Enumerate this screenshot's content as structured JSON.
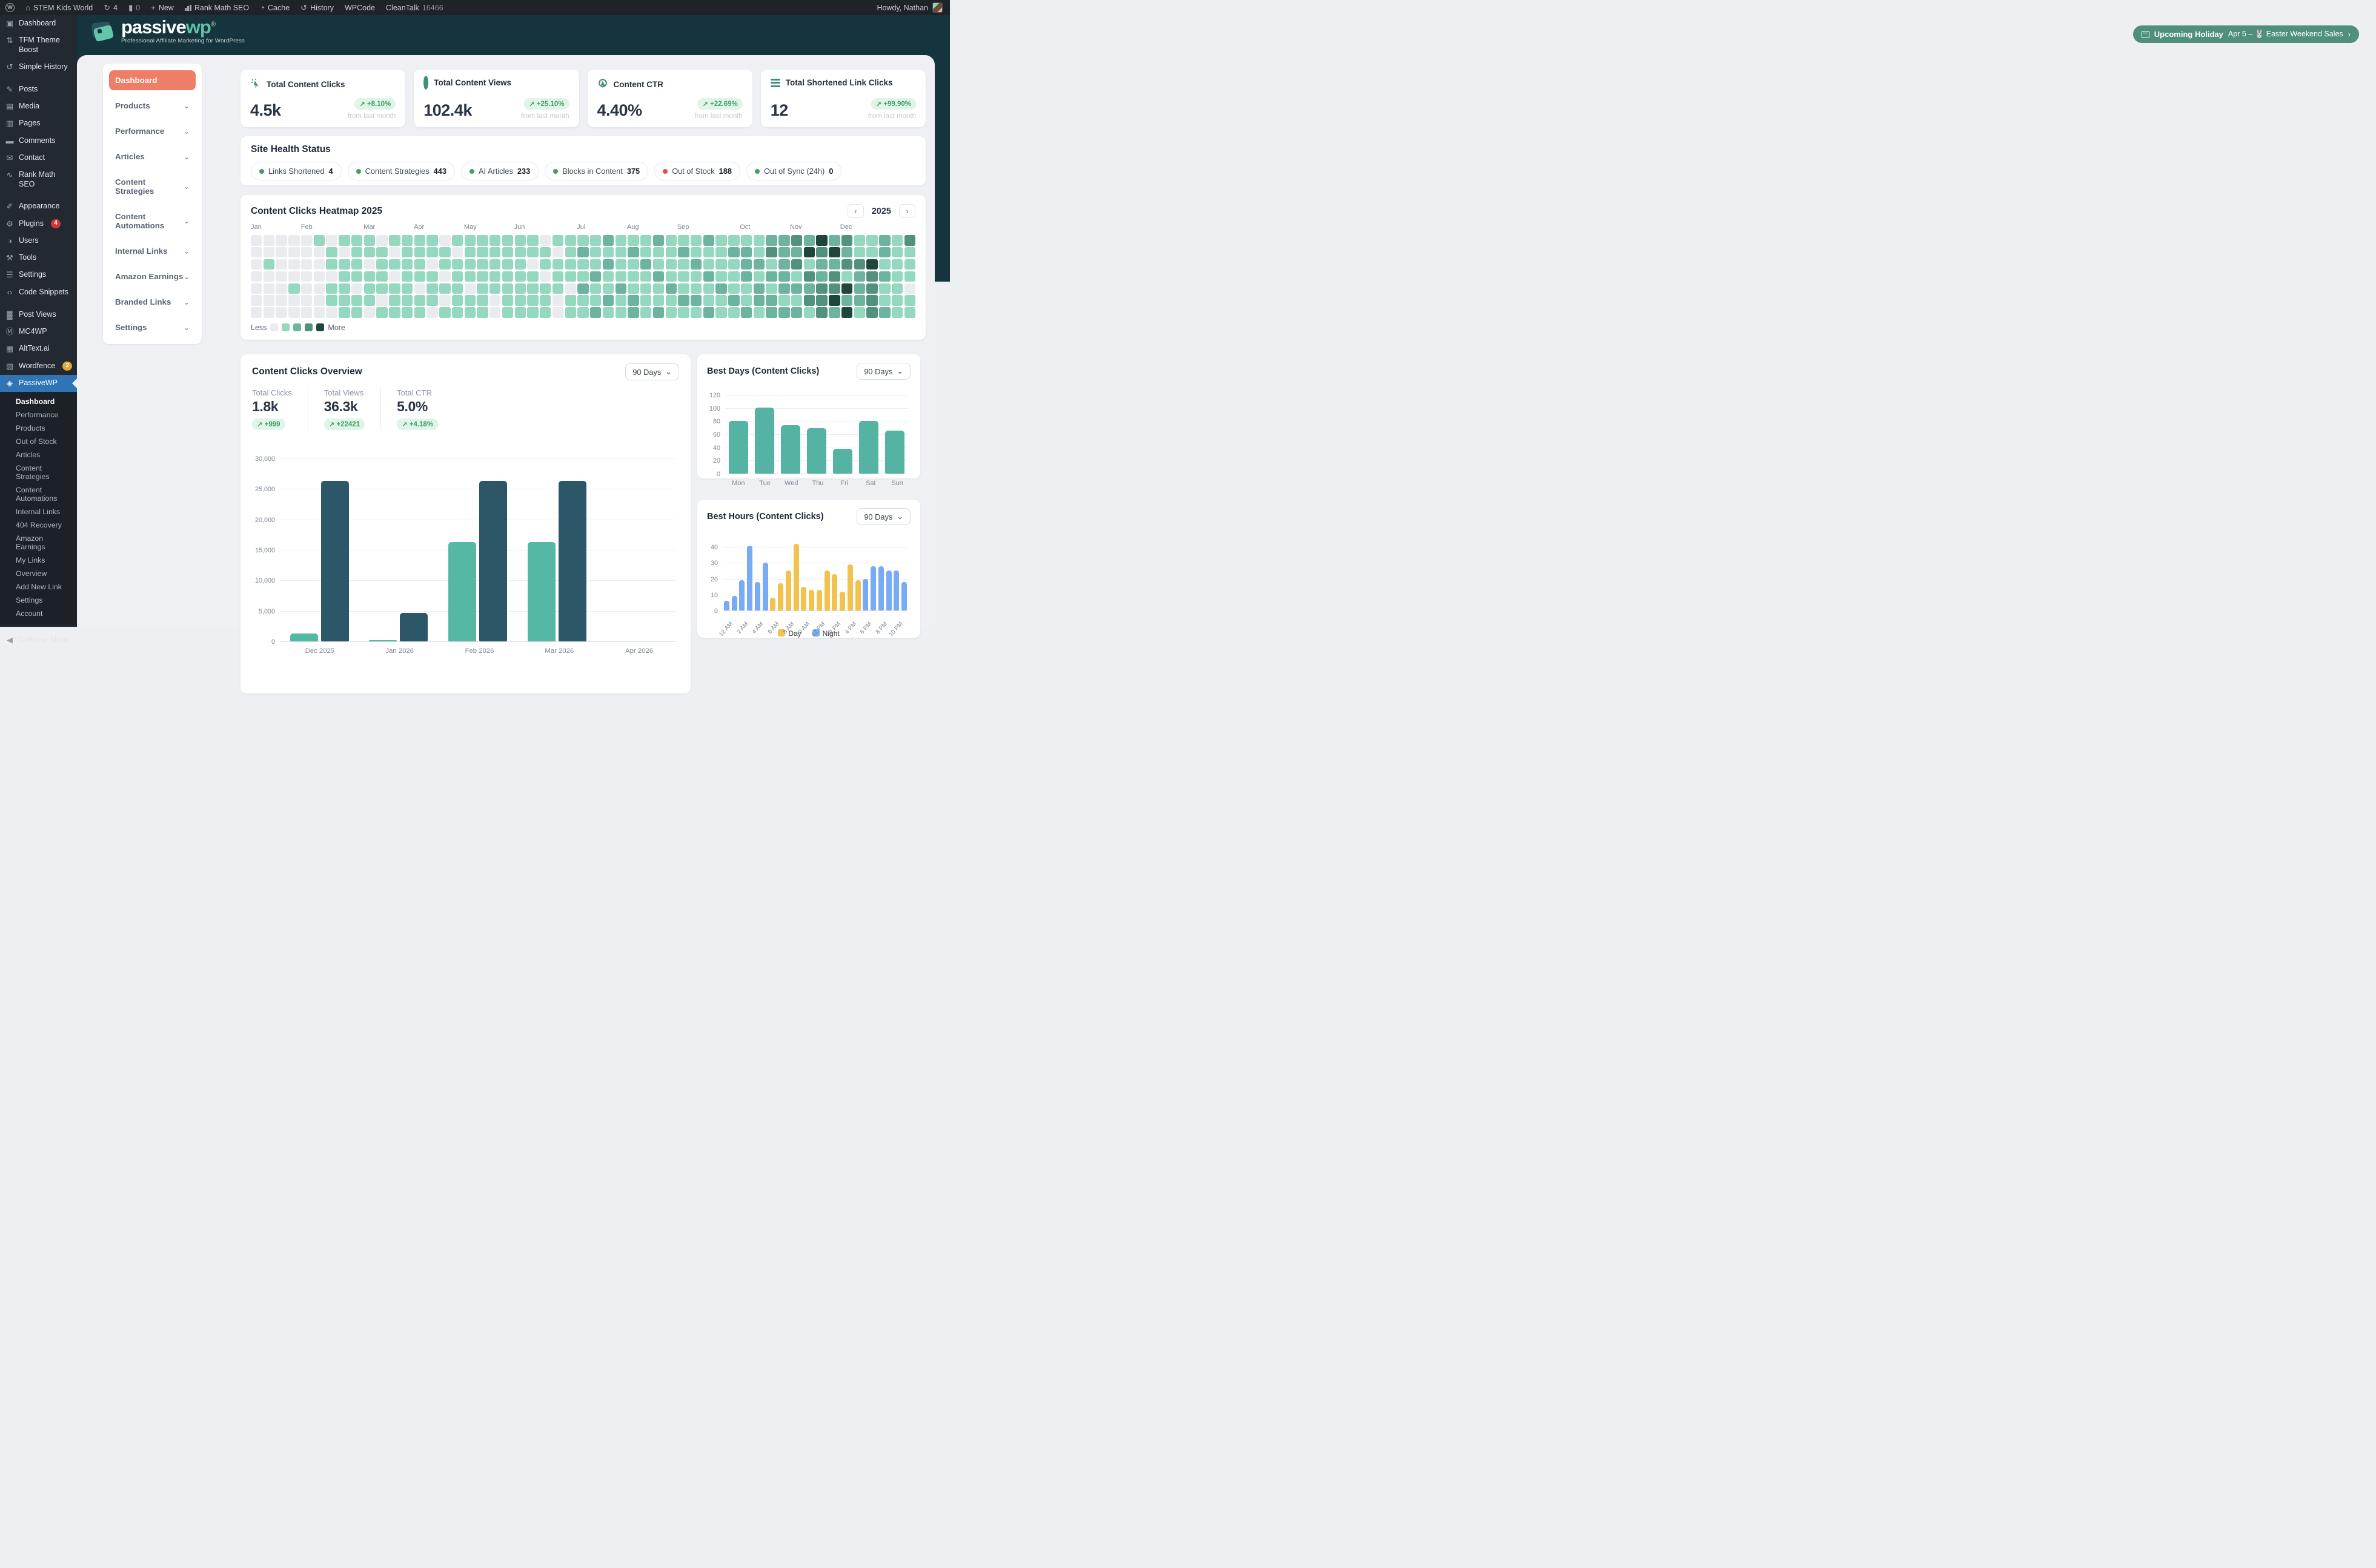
{
  "admin_bar": {
    "site_name": "STEM Kids World",
    "updates_count": "4",
    "comments_count": "0",
    "new_label": "New",
    "rank_math": "Rank Math SEO",
    "cache": "Cache",
    "history": "History",
    "wpcode": "WPCode",
    "cleantalk": "CleanTalk",
    "cleantalk_count": "16466",
    "howdy": "Howdy, Nathan"
  },
  "wp_sidebar": {
    "items": [
      {
        "label": "Dashboard",
        "icon": "dashboard",
        "gap": false
      },
      {
        "label": "TFM Theme Boost",
        "icon": "theme-boost",
        "gap": false
      },
      {
        "label": "Simple History",
        "icon": "history",
        "gap": false
      },
      {
        "label": "Posts",
        "icon": "posts",
        "gap": true
      },
      {
        "label": "Media",
        "icon": "media",
        "gap": false
      },
      {
        "label": "Pages",
        "icon": "pages",
        "gap": false
      },
      {
        "label": "Comments",
        "icon": "comments",
        "gap": false
      },
      {
        "label": "Contact",
        "icon": "contact",
        "gap": false
      },
      {
        "label": "Rank Math SEO",
        "icon": "rank-math",
        "gap": false
      },
      {
        "label": "Appearance",
        "icon": "appearance",
        "gap": true
      },
      {
        "label": "Plugins",
        "icon": "plugins",
        "badge": "4",
        "badge_color": "#d63638",
        "gap": false
      },
      {
        "label": "Users",
        "icon": "users",
        "gap": false
      },
      {
        "label": "Tools",
        "icon": "tools",
        "gap": false
      },
      {
        "label": "Settings",
        "icon": "settings",
        "gap": false
      },
      {
        "label": "Code Snippets",
        "icon": "code-snippets",
        "gap": false
      },
      {
        "label": "Post Views",
        "icon": "post-views",
        "gap": true
      },
      {
        "label": "MC4WP",
        "icon": "mc4wp",
        "gap": false
      },
      {
        "label": "AltText.ai",
        "icon": "alttext",
        "gap": false
      },
      {
        "label": "Wordfence",
        "icon": "wordfence",
        "badge": "2",
        "badge_color": "#e8a33d",
        "gap": false
      },
      {
        "label": "PassiveWP",
        "icon": "passivewp",
        "active": true,
        "gap": false
      }
    ],
    "submenu": [
      {
        "label": "Dashboard",
        "active": true
      },
      {
        "label": "Performance"
      },
      {
        "label": "Products"
      },
      {
        "label": "Out of Stock"
      },
      {
        "label": "Articles"
      },
      {
        "label": "Content Strategies"
      },
      {
        "label": "Content Automations"
      },
      {
        "label": "Internal Links"
      },
      {
        "label": "404 Recovery"
      },
      {
        "label": "Amazon Earnings"
      },
      {
        "label": "My Links"
      },
      {
        "label": "Overview"
      },
      {
        "label": "Add New Link"
      },
      {
        "label": "Settings"
      },
      {
        "label": "Account"
      }
    ],
    "collapse_label": "Collapse Menu"
  },
  "header": {
    "logo_main": "passive",
    "logo_accent": "wp",
    "logo_reg": "®",
    "tagline": "Professional Affiliate Marketing for WordPress",
    "holiday_label": "Upcoming Holiday",
    "holiday_detail": "Apr 5 – 🐰 Easter Weekend Sales"
  },
  "plugin_menu": {
    "items": [
      {
        "label": "Dashboard",
        "active": true,
        "chevron": false
      },
      {
        "label": "Products",
        "chevron": true
      },
      {
        "label": "Performance",
        "chevron": true
      },
      {
        "label": "Articles",
        "chevron": true
      },
      {
        "label": "Content Strategies",
        "chevron": true
      },
      {
        "label": "Content Automations",
        "chevron": true
      },
      {
        "label": "Internal Links",
        "chevron": true
      },
      {
        "label": "Amazon Earnings",
        "chevron": true
      },
      {
        "label": "Branded Links",
        "chevron": true
      },
      {
        "label": "Settings",
        "chevron": true
      }
    ]
  },
  "stat_cards": [
    {
      "icon": "cursor-click",
      "title": "Total Content Clicks",
      "value": "4.5k",
      "change": "+8.10%",
      "note": "from last month"
    },
    {
      "icon": "eye-donut",
      "title": "Total Content Views",
      "value": "102.4k",
      "change": "+25.10%",
      "note": "from last month"
    },
    {
      "icon": "cursor-circle",
      "title": "Content CTR",
      "value": "4.40%",
      "change": "+22.69%",
      "note": "from last month"
    },
    {
      "icon": "lines",
      "title": "Total Shortened Link Clicks",
      "value": "12",
      "change": "+99.90%",
      "note": "from last month"
    }
  ],
  "site_health": {
    "title": "Site Health Status",
    "pills": [
      {
        "label": "Links Shortened",
        "value": "4",
        "dot": "#3da066"
      },
      {
        "label": "Content Strategies",
        "value": "443",
        "dot": "#3da066"
      },
      {
        "label": "AI Articles",
        "value": "233",
        "dot": "#3da066"
      },
      {
        "label": "Blocks in Content",
        "value": "375",
        "dot": "#3da066"
      },
      {
        "label": "Out of Stock",
        "value": "188",
        "dot": "#e25045"
      },
      {
        "label": "Out of Sync (24h)",
        "value": "0",
        "dot": "#3da066"
      }
    ]
  },
  "heatmap": {
    "title": "Content Clicks Heatmap 2025",
    "year": "2025",
    "legend_less": "Less",
    "legend_more": "More",
    "palette": [
      "#e9ebee",
      "#94d8bf",
      "#6cb4a0",
      "#53917f",
      "#1f463c"
    ],
    "months": [
      {
        "label": "Jan",
        "col": 0
      },
      {
        "label": "Feb",
        "col": 4
      },
      {
        "label": "Mar",
        "col": 9
      },
      {
        "label": "Apr",
        "col": 13
      },
      {
        "label": "May",
        "col": 17
      },
      {
        "label": "Jun",
        "col": 21
      },
      {
        "label": "Jul",
        "col": 26
      },
      {
        "label": "Aug",
        "col": 30
      },
      {
        "label": "Sep",
        "col": 34
      },
      {
        "label": "Oct",
        "col": 39
      },
      {
        "label": "Nov",
        "col": 43
      },
      {
        "label": "Dec",
        "col": 47
      }
    ],
    "chart_data": {
      "type": "heatmap",
      "rows": [
        "000001011101111011111110111121112111211112232423112131",
        "000000101110111101111111012111211121112213224342112110",
        "010000111011110111111101111121121112111221231223341110",
        "000000011110111011111110111211112111211212213231232110",
        "000100110111101110111111102112111211121121222334231100",
        "000000111101111011101111011121211122112122113342231110",
        "000000011011110111101111011211212111211212221324132110"
      ]
    }
  },
  "overview": {
    "title": "Content Clicks Overview",
    "range": "90 Days",
    "stats": [
      {
        "label": "Total Clicks",
        "value": "1.8k",
        "change": "+999"
      },
      {
        "label": "Total Views",
        "value": "36.3k",
        "change": "+22421"
      },
      {
        "label": "Total CTR",
        "value": "5.0%",
        "change": "+4.18%"
      }
    ],
    "chart_data": {
      "type": "bar",
      "categories": [
        "Dec 2025",
        "Jan 2026",
        "Feb 2026",
        "Mar 2026",
        "Apr 2026"
      ],
      "series": [
        {
          "name": "Clicks",
          "color": "#54b8a5",
          "values": [
            1300,
            150,
            16300,
            16300,
            0
          ]
        },
        {
          "name": "Views",
          "color": "#2b5768",
          "values": [
            26300,
            4700,
            26300,
            26300,
            0
          ]
        }
      ],
      "ylim": [
        0,
        30000
      ],
      "yticks": [
        0,
        5000,
        10000,
        15000,
        20000,
        25000,
        30000
      ],
      "grid": true
    }
  },
  "best_days": {
    "title": "Best Days (Content Clicks)",
    "range": "90 Days",
    "chart_data": {
      "type": "bar",
      "categories": [
        "Mon",
        "Tue",
        "Wed",
        "Thu",
        "Fri",
        "Sat",
        "Sun"
      ],
      "values": [
        80,
        101,
        74,
        69,
        38,
        80,
        66
      ],
      "color": "#54b3a2",
      "ylim": [
        0,
        120
      ],
      "yticks": [
        0,
        20,
        40,
        60,
        80,
        100,
        120
      ],
      "grid": true
    }
  },
  "best_hours": {
    "title": "Best Hours (Content Clicks)",
    "range": "90 Days",
    "chart_data": {
      "type": "bar",
      "categories": [
        "12 AM",
        "1 AM",
        "2 AM",
        "3 AM",
        "4 AM",
        "5 AM",
        "6 AM",
        "7 AM",
        "8 AM",
        "9 AM",
        "10 AM",
        "11 AM",
        "12 PM",
        "1 PM",
        "2 PM",
        "3 PM",
        "4 PM",
        "5 PM",
        "6 PM",
        "7 PM",
        "8 PM",
        "9 PM",
        "10 PM",
        "11 PM"
      ],
      "values": [
        6,
        9,
        19,
        41,
        18,
        30,
        8,
        17,
        25,
        42,
        15,
        13,
        13,
        25,
        23,
        12,
        29,
        19,
        20,
        28,
        28,
        25,
        25,
        18
      ],
      "periods": [
        "night",
        "night",
        "night",
        "night",
        "night",
        "night",
        "day",
        "day",
        "day",
        "day",
        "day",
        "day",
        "day",
        "day",
        "day",
        "day",
        "day",
        "day",
        "night",
        "night",
        "night",
        "night",
        "night",
        "night"
      ],
      "colors": {
        "day": "#f3c24e",
        "night": "#78aaf6"
      },
      "shown_labels": [
        "12 AM",
        "2 AM",
        "4 AM",
        "6 AM",
        "8 AM",
        "10 AM",
        "12 PM",
        "2 PM",
        "4 PM",
        "6 PM",
        "8 PM",
        "10 PM"
      ],
      "ylim": [
        0,
        45
      ],
      "yticks": [
        0,
        10,
        20,
        30,
        40
      ],
      "grid": true,
      "legend": [
        {
          "label": "Day",
          "key": "day"
        },
        {
          "label": "Night",
          "key": "night"
        }
      ]
    }
  }
}
